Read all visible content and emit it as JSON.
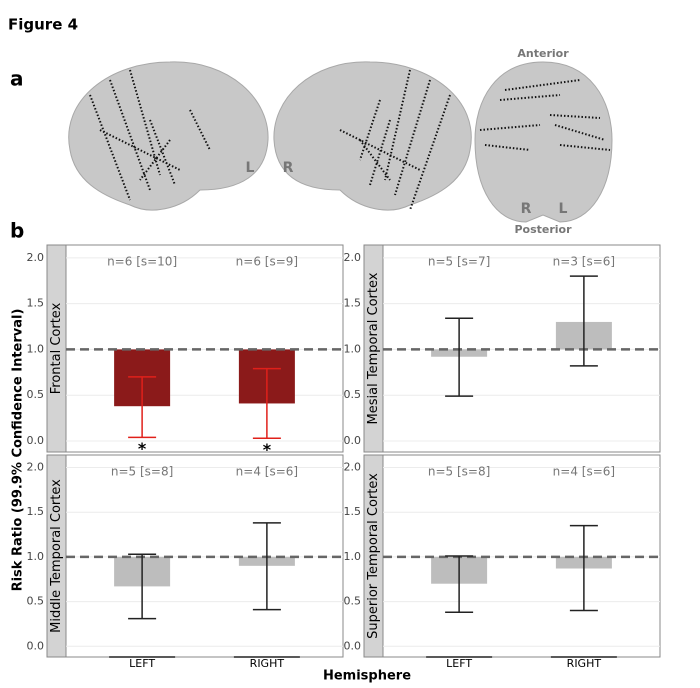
{
  "title": "Figure 4",
  "panel_a": {
    "label": "a",
    "brain_labels": [
      "L",
      "R",
      "Anterior",
      "Posterior",
      "R",
      "L"
    ]
  },
  "panel_b": {
    "label": "b",
    "y_label": "Risk Ratio (99.9% Confidence Interval)",
    "x_label": "Hemisphere"
  },
  "chart_data": [
    {
      "type": "bar",
      "facet": "Frontal Cortex",
      "values": [
        0.38,
        0.41
      ],
      "ci_low": [
        0.04,
        0.03
      ],
      "ci_high": [
        0.7,
        0.79
      ],
      "annotations": [
        "n=6 [s=10]",
        "n=6 [s=9]"
      ],
      "significance": [
        "*",
        "*"
      ],
      "color": "#8b1a1a",
      "errorbar_color": "#e0201a",
      "refline": 1,
      "ylim": [
        -0.12,
        2.14
      ],
      "yticks": [
        {
          "value": 0,
          "label": "0.0"
        },
        {
          "value": 0.5,
          "label": "0.5"
        },
        {
          "value": 1,
          "label": "1.0"
        },
        {
          "value": 1.5,
          "label": "1.5"
        },
        {
          "value": 2,
          "label": "2.0"
        }
      ],
      "grid": true
    },
    {
      "type": "bar",
      "facet": "Mesial Temporal Cortex",
      "values": [
        0.92,
        1.3
      ],
      "ci_low": [
        0.49,
        0.82
      ],
      "ci_high": [
        1.34,
        1.8
      ],
      "annotations": [
        "n=5 [s=7]",
        "n=3 [s=6]"
      ],
      "color": "#bdbdbd",
      "errorbar_color": "#222222",
      "refline": 1,
      "ylim": [
        -0.12,
        2.14
      ],
      "yticks": [
        {
          "value": 0,
          "label": "0.0"
        },
        {
          "value": 0.5,
          "label": "0.5"
        },
        {
          "value": 1,
          "label": "1.0"
        },
        {
          "value": 1.5,
          "label": "1.5"
        },
        {
          "value": 2,
          "label": "2.0"
        }
      ],
      "grid": true
    },
    {
      "type": "bar",
      "facet": "Middle Temporal Cortex",
      "categories": [
        "LEFT",
        "RIGHT"
      ],
      "values": [
        0.67,
        0.9
      ],
      "ci_low": [
        0.31,
        0.41
      ],
      "ci_high": [
        1.03,
        1.38
      ],
      "annotations": [
        "n=5 [s=8]",
        "n=4 [s=6]"
      ],
      "color": "#bdbdbd",
      "errorbar_color": "#222222",
      "refline": 1,
      "ylim": [
        -0.12,
        2.14
      ],
      "yticks": [
        {
          "value": 0,
          "label": "0.0"
        },
        {
          "value": 0.5,
          "label": "0.5"
        },
        {
          "value": 1,
          "label": "1.0"
        },
        {
          "value": 1.5,
          "label": "1.5"
        },
        {
          "value": 2,
          "label": "2.0"
        }
      ],
      "grid": true
    },
    {
      "type": "bar",
      "facet": "Superior Temporal Cortex",
      "categories": [
        "LEFT",
        "RIGHT"
      ],
      "values": [
        0.7,
        0.87
      ],
      "ci_low": [
        0.38,
        0.4
      ],
      "ci_high": [
        1.01,
        1.35
      ],
      "annotations": [
        "n=5 [s=8]",
        "n=4 [s=6]"
      ],
      "color": "#bdbdbd",
      "errorbar_color": "#222222",
      "refline": 1,
      "ylim": [
        -0.12,
        2.14
      ],
      "yticks": [
        {
          "value": 0,
          "label": "0.0"
        },
        {
          "value": 0.5,
          "label": "0.5"
        },
        {
          "value": 1,
          "label": "1.0"
        },
        {
          "value": 1.5,
          "label": "1.5"
        },
        {
          "value": 2,
          "label": "2.0"
        }
      ],
      "grid": true
    }
  ]
}
